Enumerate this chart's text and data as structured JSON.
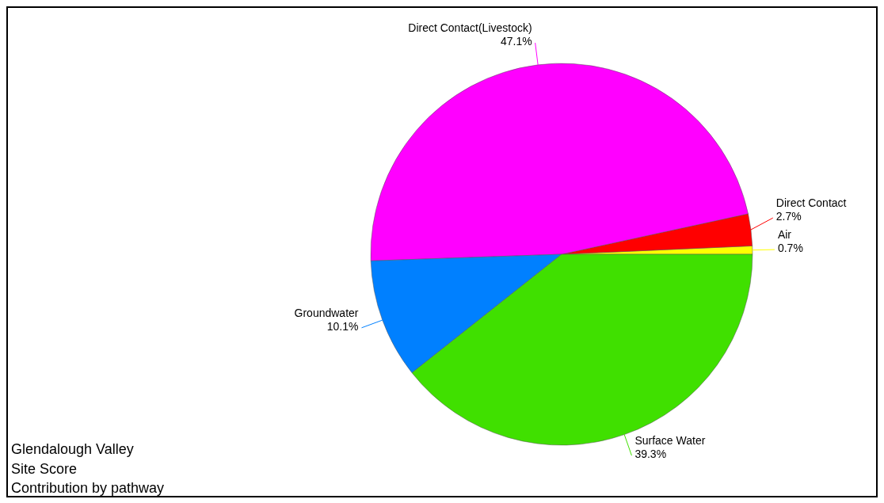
{
  "chart_data": {
    "type": "pie",
    "title": "Glendalough Valley",
    "subtitle": "Site Score",
    "annotations": [
      "Contribution by pathway"
    ],
    "categories": [
      "Air",
      "Direct Contact",
      "Direct Contact(Livestock)",
      "Groundwater",
      "Surface Water"
    ],
    "values": [
      0.7,
      2.7,
      47.1,
      10.1,
      39.3
    ],
    "value_labels": [
      "0.7%",
      "2.7%",
      "47.1%",
      "10.1%",
      "39.3%"
    ],
    "colors": [
      "#ffff00",
      "#ff0000",
      "#ff00ff",
      "#0080ff",
      "#40e000"
    ]
  }
}
